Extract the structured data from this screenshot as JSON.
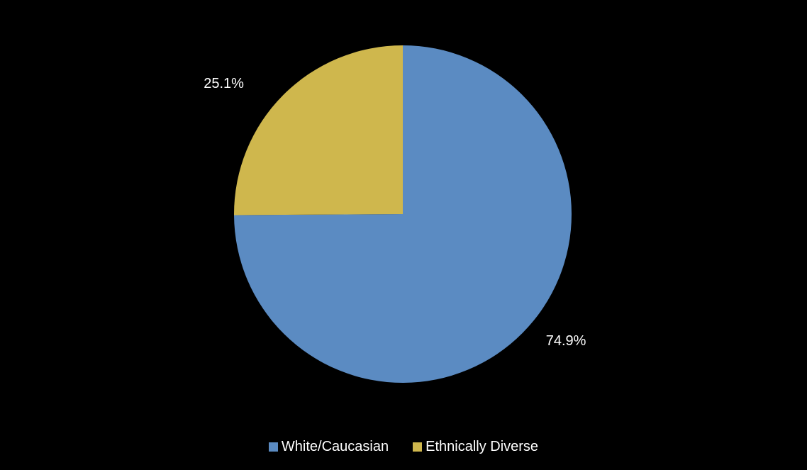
{
  "chart_data": {
    "type": "pie",
    "categories": [
      "White/Caucasian",
      "Ethnically Diverse"
    ],
    "values": [
      74.9,
      25.1
    ],
    "unit": "%",
    "data_labels": [
      "74.9%",
      "25.1%"
    ],
    "colors": [
      "#5B8BC2",
      "#CFB74D"
    ],
    "start_angle_deg": 0,
    "direction": "clockwise",
    "legend_position": "bottom",
    "title": "",
    "background": "#000000"
  },
  "legend": {
    "items": [
      {
        "label": "White/Caucasian",
        "color": "#5B8BC2"
      },
      {
        "label": "Ethnically Diverse",
        "color": "#CFB74D"
      }
    ]
  }
}
